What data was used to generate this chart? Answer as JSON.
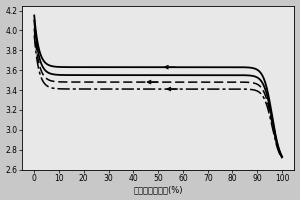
{
  "xlabel": "规一化放电容量(%)",
  "xlim": [
    -5,
    105
  ],
  "ylim": [
    2.6,
    4.25
  ],
  "yticks": [
    2.6,
    2.8,
    3.0,
    3.2,
    3.4,
    3.6,
    3.8,
    4.0,
    4.2
  ],
  "xticks": [
    0,
    10,
    20,
    30,
    40,
    50,
    60,
    70,
    80,
    90,
    100
  ],
  "background_color": "#c8c8c8",
  "plot_bg": "#e8e8e8",
  "figsize": [
    3.0,
    2.0
  ],
  "dpi": 100,
  "curves": [
    {
      "v_start": 4.15,
      "v_mid": 3.63,
      "v_plateau": 3.63,
      "style": "-",
      "lw": 1.3
    },
    {
      "v_start": 4.1,
      "v_mid": 3.55,
      "v_plateau": 3.55,
      "style": "-",
      "lw": 1.3
    },
    {
      "v_start": 4.02,
      "v_mid": 3.48,
      "v_plateau": 3.48,
      "style": "--",
      "lw": 1.1
    },
    {
      "v_start": 3.95,
      "v_mid": 3.41,
      "v_plateau": 3.41,
      "style": "-.",
      "lw": 1.1
    }
  ],
  "arrows": [
    {
      "x": 57,
      "curve": 0
    },
    {
      "x": 50,
      "curve": 2
    },
    {
      "x": 58,
      "curve": 3
    }
  ]
}
